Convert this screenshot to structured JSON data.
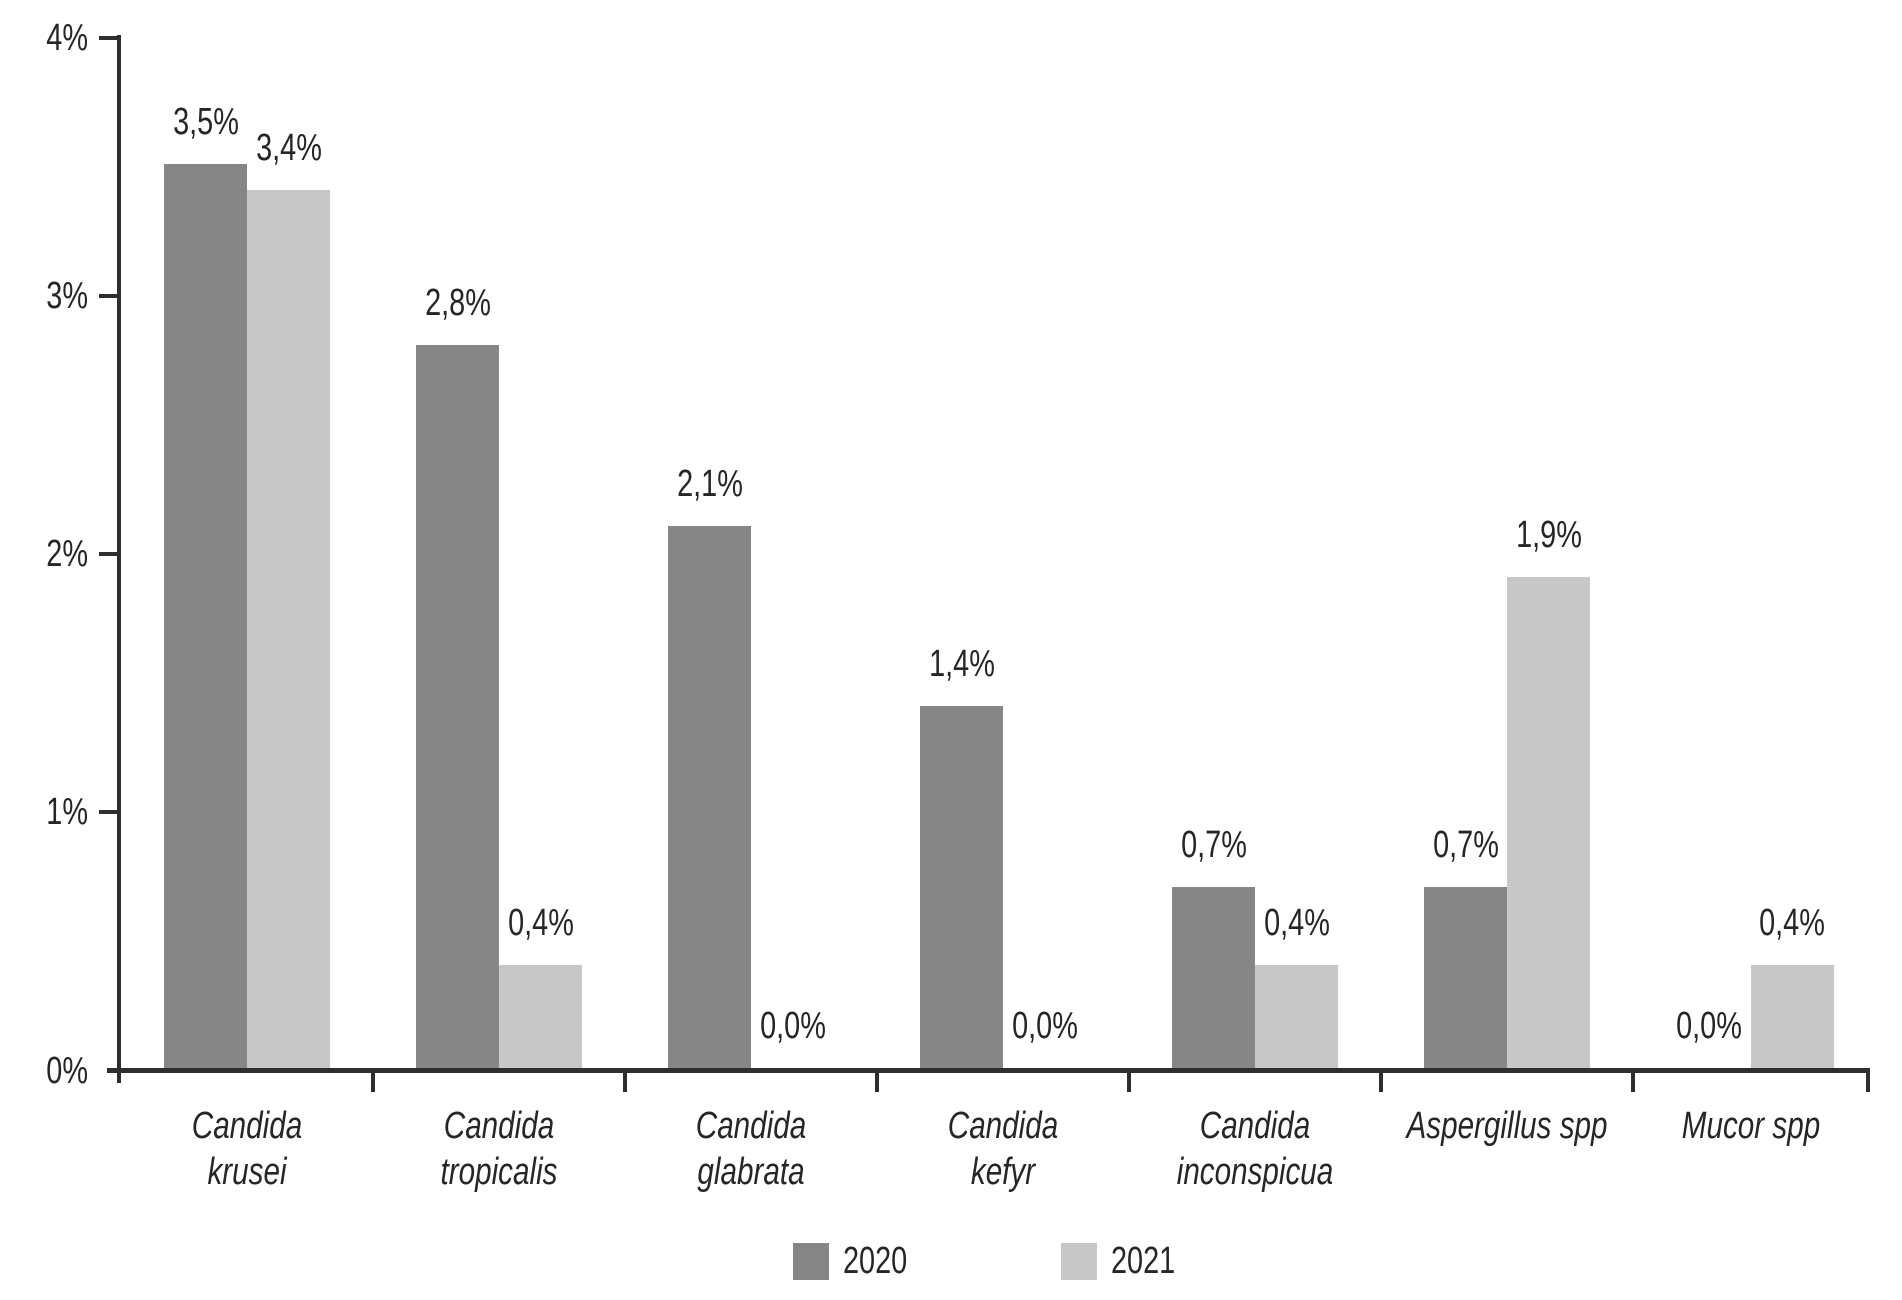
{
  "chart_data": {
    "type": "bar",
    "title": "",
    "xlabel": "",
    "ylabel": "",
    "ylim": [
      0,
      4
    ],
    "grid": false,
    "legend_position": "bottom",
    "decimal_separator": ",",
    "yticks": [
      {
        "value": 0,
        "label": "0%"
      },
      {
        "value": 1,
        "label": "1%"
      },
      {
        "value": 2,
        "label": "2%"
      },
      {
        "value": 3,
        "label": "3%"
      },
      {
        "value": 4,
        "label": "4%"
      }
    ],
    "categories": [
      {
        "lines": [
          "Candida",
          "krusei"
        ]
      },
      {
        "lines": [
          "Candida",
          "tropicalis"
        ]
      },
      {
        "lines": [
          "Candida",
          "glabrata"
        ]
      },
      {
        "lines": [
          "Candida",
          "kefyr"
        ]
      },
      {
        "lines": [
          "Candida",
          "inconspicua"
        ]
      },
      {
        "lines": [
          "Aspergillus spp"
        ]
      },
      {
        "lines": [
          "Mucor spp"
        ]
      }
    ],
    "series": [
      {
        "name": "2020",
        "color": "#868686",
        "values": [
          3.5,
          2.8,
          2.1,
          1.4,
          0.7,
          0.7,
          0.0
        ],
        "labels": [
          "3,5%",
          "2,8%",
          "2,1%",
          "1,4%",
          "0,7%",
          "0,7%",
          "0,0%"
        ]
      },
      {
        "name": "2021",
        "color": "#c7c7c7",
        "values": [
          3.4,
          0.4,
          0.0,
          0.0,
          0.4,
          1.9,
          0.4
        ],
        "labels": [
          "3,4%",
          "0,4%",
          "0,0%",
          "0,0%",
          "0,4%",
          "1,9%",
          "0,4%"
        ]
      }
    ],
    "colors": {
      "text": "#262626",
      "axis": "#2e2e2e",
      "background": "#ffffff"
    }
  }
}
